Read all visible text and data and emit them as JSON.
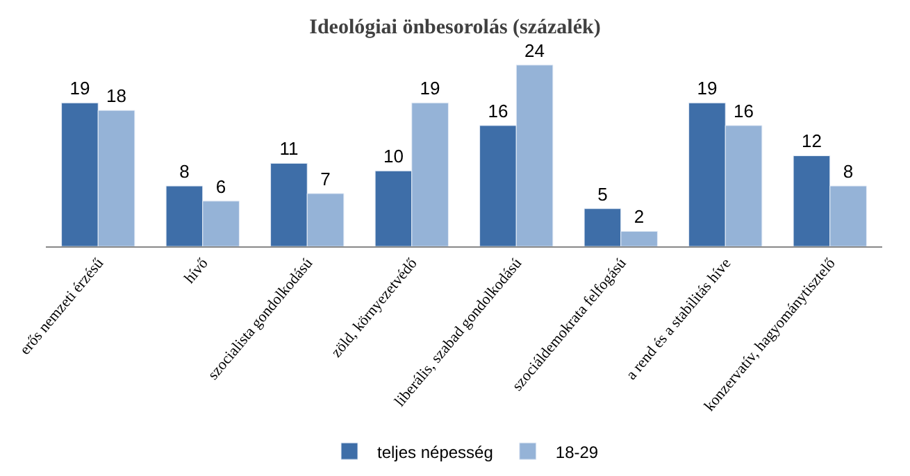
{
  "chart_data": {
    "type": "bar",
    "title": "Ideológiai önbesorolás (százalék)",
    "categories": [
      "erős nemzeti érzésű",
      "hívő",
      "szocialista gondolkodású",
      "zöld, környezetvédő",
      "liberális, szabad gondolkodású",
      "szociáldemokrata felfogású",
      "a rend és a stabilitás híve",
      "konzervatív, hagyománytisztelő"
    ],
    "series": [
      {
        "name": "teljes népesség",
        "color": "#3e6ea8",
        "values": [
          19,
          8,
          11,
          10,
          16,
          5,
          19,
          12
        ]
      },
      {
        "name": "18-29",
        "color": "#95b3d7",
        "values": [
          18,
          6,
          7,
          19,
          24,
          2,
          16,
          8
        ]
      }
    ],
    "data_labels": true,
    "legend": "bottom",
    "tick_labels": "x"
  }
}
